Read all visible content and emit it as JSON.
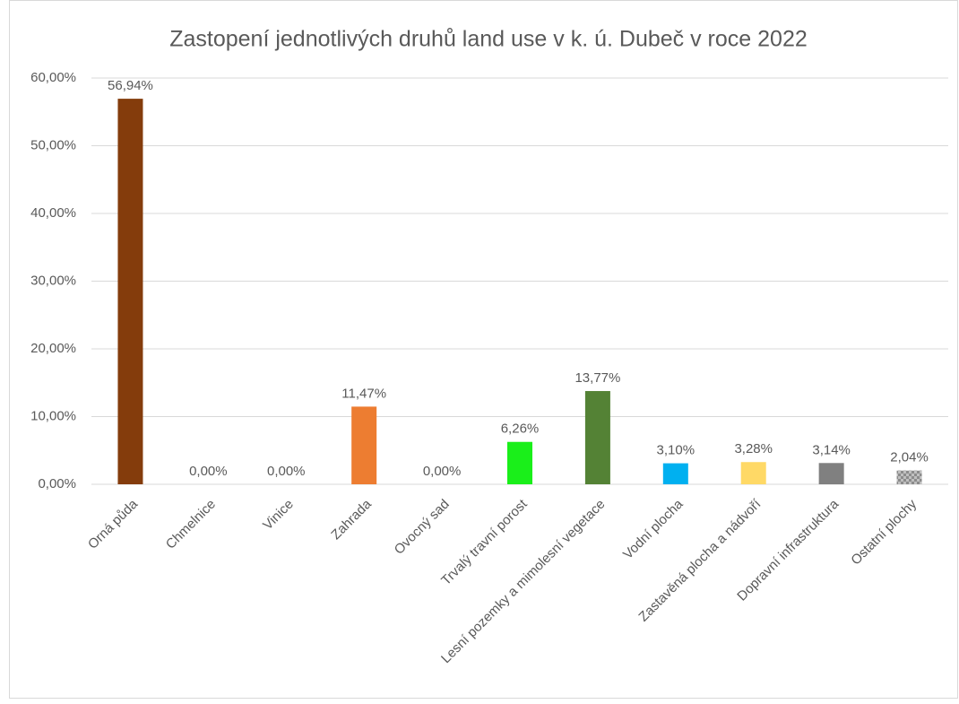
{
  "chart_data": {
    "type": "bar",
    "title": "Zastopení jednotlivých druhů land use v k. ú. Dubeč v roce 2022",
    "categories": [
      "Orná půda",
      "Chmelnice",
      "Vinice",
      "Zahrada",
      "Ovocný sad",
      "Trvalý travní porost",
      "Lesní pozemky a mimolesní vegetace",
      "Vodní plocha",
      "Zastavěná plocha a nádvoří",
      "Dopravní infrastruktura",
      "Ostatní plochy"
    ],
    "values": [
      56.94,
      0,
      0,
      11.47,
      0,
      6.26,
      13.77,
      3.1,
      3.28,
      3.14,
      2.04
    ],
    "value_labels": [
      "56,94%",
      "0,00%",
      "0,00%",
      "11,47%",
      "0,00%",
      "6,26%",
      "13,77%",
      "3,10%",
      "3,28%",
      "3,14%",
      "2,04%"
    ],
    "colors": [
      "#843c0c",
      "#843c0c",
      "#843c0c",
      "#ed7d31",
      "#843c0c",
      "#1aef1a",
      "#548235",
      "#00b0f0",
      "#ffd966",
      "#808080",
      "#a6a6a6"
    ],
    "ylim": [
      0,
      60
    ],
    "yticks": [
      {
        "value": 0,
        "label": "0,00%"
      },
      {
        "value": 10,
        "label": "10,00%"
      },
      {
        "value": 20,
        "label": "20,00%"
      },
      {
        "value": 30,
        "label": "30,00%"
      },
      {
        "value": 40,
        "label": "40,00%"
      },
      {
        "value": 50,
        "label": "50,00%"
      },
      {
        "value": 60,
        "label": "60,00%"
      }
    ],
    "grid": true
  }
}
